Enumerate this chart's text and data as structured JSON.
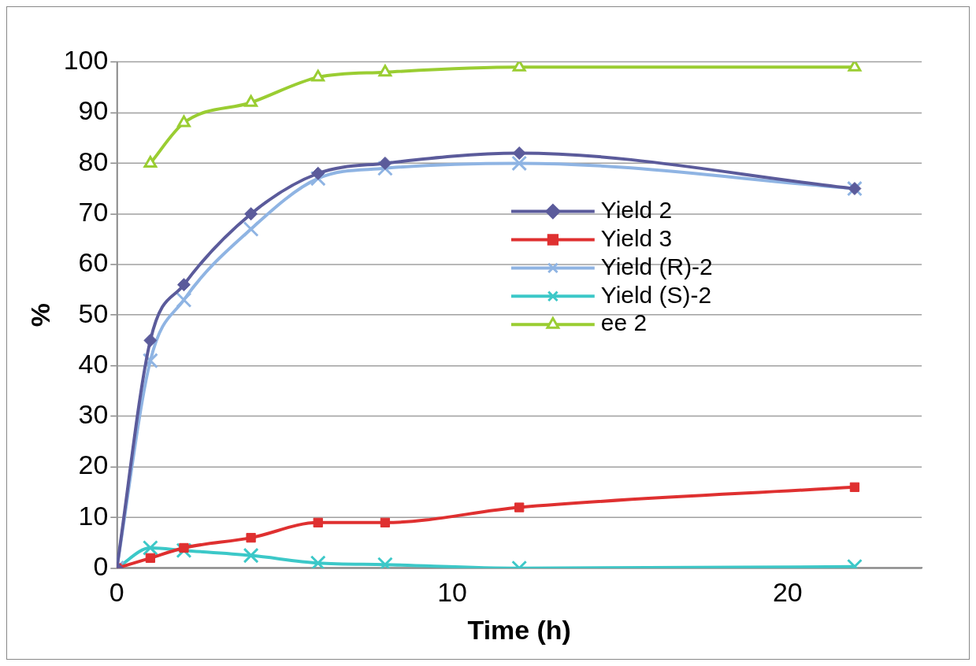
{
  "chart_data": {
    "type": "line",
    "xlabel": "Time (h)",
    "ylabel": "%",
    "xlim": [
      0,
      24
    ],
    "xticks": [
      0,
      10,
      20
    ],
    "ylim": [
      0,
      100
    ],
    "yticks": [
      0,
      10,
      20,
      30,
      40,
      50,
      60,
      70,
      80,
      90,
      100
    ],
    "grid": "y",
    "legend": "right",
    "series": [
      {
        "name": "Yield 2",
        "color": "#5b5b9b",
        "marker": "diamond",
        "x": [
          0,
          1,
          2,
          4,
          6,
          8,
          12,
          22
        ],
        "values": [
          0,
          45,
          56,
          70,
          78,
          80,
          82,
          75
        ]
      },
      {
        "name": "Yield 3",
        "color": "#df3030",
        "marker": "square",
        "x": [
          0,
          1,
          2,
          4,
          6,
          8,
          12,
          22
        ],
        "values": [
          0,
          2,
          4,
          6,
          9,
          9,
          12,
          16
        ]
      },
      {
        "name": "Yield (R)-2",
        "color": "#8fb4e3",
        "marker": "cross",
        "x": [
          0,
          1,
          2,
          4,
          6,
          8,
          12,
          22
        ],
        "values": [
          0,
          41,
          53,
          67,
          77,
          79,
          80,
          75
        ]
      },
      {
        "name": "Yield (S)-2",
        "color": "#3cc8c8",
        "marker": "cross",
        "x": [
          0,
          1,
          2,
          4,
          6,
          8,
          12,
          22
        ],
        "values": [
          0,
          4,
          3.5,
          2.5,
          1,
          0.7,
          0,
          0.3
        ]
      },
      {
        "name": "ee 2",
        "color": "#9acd32",
        "marker": "triangle",
        "x": [
          1,
          2,
          4,
          6,
          8,
          12,
          22
        ],
        "values": [
          80,
          88,
          92,
          97,
          98,
          99,
          99
        ]
      }
    ]
  }
}
